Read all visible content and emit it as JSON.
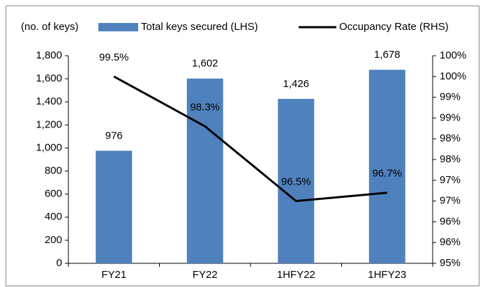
{
  "chart_data": {
    "type": "bar_line",
    "y_label": "(no. of keys)",
    "categories": [
      "FY21",
      "FY22",
      "1HFY22",
      "1HFY23"
    ],
    "series": [
      {
        "name": "Total keys secured (LHS)",
        "type": "bar",
        "color": "#4f81bd",
        "values": [
          976,
          1602,
          1426,
          1678
        ],
        "value_labels": [
          "976",
          "1,602",
          "1,426",
          "1,678"
        ]
      },
      {
        "name": "Occupancy Rate (RHS)",
        "type": "line",
        "axis": "y2",
        "color": "#000000",
        "values": [
          99.5,
          98.3,
          96.5,
          96.7
        ],
        "value_labels": [
          "99.5%",
          "98.3%",
          "96.5%",
          "96.7%"
        ]
      }
    ],
    "ylim": [
      0,
      1800
    ],
    "yticks": [
      0,
      200,
      400,
      600,
      800,
      {
        "value": 1000,
        "label": "1,000"
      },
      {
        "value": 1200,
        "label": "1,200"
      },
      {
        "value": 1400,
        "label": "1,400"
      },
      {
        "value": 1600,
        "label": "1,600"
      },
      {
        "value": 1800,
        "label": "1,800"
      }
    ],
    "y2lim": [
      95,
      100
    ],
    "y2ticks": [
      {
        "value": 95,
        "label": "95%"
      },
      {
        "value": 95.5,
        "label": "96%"
      },
      {
        "value": 96,
        "label": "96%"
      },
      {
        "value": 96.5,
        "label": "97%"
      },
      {
        "value": 97,
        "label": "97%"
      },
      {
        "value": 97.5,
        "label": "98%"
      },
      {
        "value": 98,
        "label": "98%"
      },
      {
        "value": 98.5,
        "label": "99%"
      },
      {
        "value": 99,
        "label": "99%"
      },
      {
        "value": 99.5,
        "label": "100%"
      },
      {
        "value": 100,
        "label": "100%"
      }
    ],
    "grid": false
  }
}
